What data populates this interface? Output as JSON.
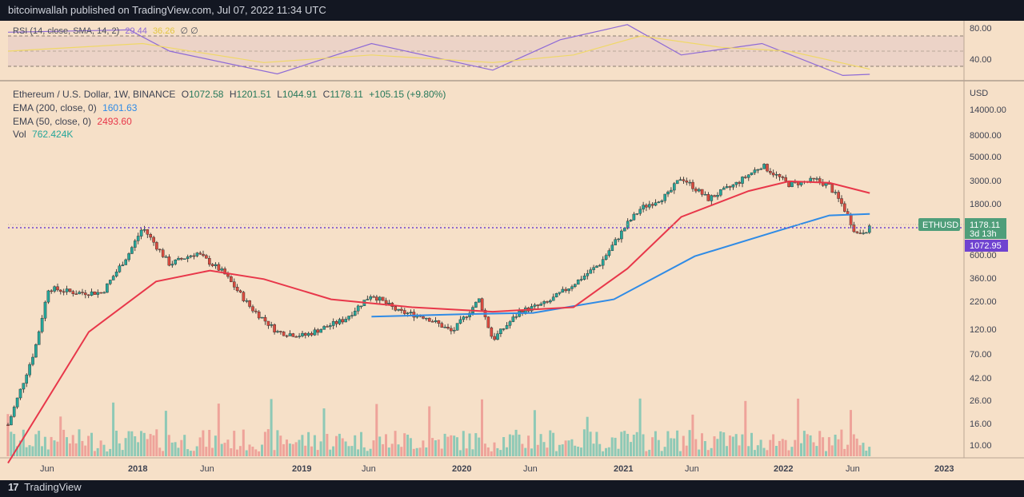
{
  "header": {
    "published": "bitcoinwallah published on TradingView.com, Jul 07, 2022 11:34 UTC"
  },
  "footer": {
    "logo": "17",
    "brand": "TradingView"
  },
  "colors": {
    "background": "#f6e0c8",
    "panel_dark": "#131722",
    "ema200": "#2f8be6",
    "ema50": "#e8374a",
    "rsi": "#8e6ad6",
    "rsi_sma": "#f0d868",
    "bull": "#26a69a",
    "bear": "#ef5350",
    "label_green": "#4f9e7a",
    "label_purple": "#6f43d0"
  },
  "rsi": {
    "label": "RSI (14, close, SMA, 14, 2)",
    "value1": "29.44",
    "value2": "36.26",
    "suffix": "∅ ∅",
    "ticks": [
      "80.00",
      "40.00"
    ]
  },
  "legend": {
    "symbol": "Ethereum / U.S. Dollar, 1W, BINANCE",
    "o_label": "O",
    "o": "1072.58",
    "h_label": "H",
    "h": "1201.51",
    "l_label": "L",
    "l": "1044.91",
    "c_label": "C",
    "c": "1178.11",
    "change": "+105.15 (+9.80%)",
    "ema200_label": "EMA (200, close, 0)",
    "ema200_value": "1601.63",
    "ema50_label": "EMA (50, close, 0)",
    "ema50_value": "2493.60",
    "vol_label": "Vol",
    "vol_value": "762.424K"
  },
  "axis": {
    "currency": "USD",
    "y_ticks": [
      "14000.00",
      "8000.00",
      "5000.00",
      "3000.00",
      "1800.00",
      "600.00",
      "360.00",
      "220.00",
      "120.00",
      "70.00",
      "42.00",
      "26.00",
      "16.00",
      "10.00"
    ],
    "x_ticks": [
      "Jun",
      "2018",
      "Jun",
      "2019",
      "Jun",
      "2020",
      "Jun",
      "2021",
      "Jun",
      "2022",
      "Jun",
      "2023"
    ]
  },
  "price_labels": {
    "symbol_tag": "ETHUSD",
    "last_price": "1178.11",
    "countdown": "3d 13h",
    "low_line": "1072.95"
  },
  "chart_data": {
    "type": "candlestick",
    "x_range": [
      "2017-03",
      "2023-02"
    ],
    "y_scale": "log",
    "ylim": [
      6,
      20000
    ],
    "series": [
      {
        "name": "ETHUSD",
        "kind": "weekly close (approx.)",
        "x": [
          "2017-03",
          "2017-05",
          "2017-06",
          "2017-08",
          "2017-10",
          "2017-12",
          "2018-01",
          "2018-03",
          "2018-05",
          "2018-07",
          "2018-09",
          "2018-11",
          "2019-01",
          "2019-04",
          "2019-06",
          "2019-08",
          "2019-10",
          "2019-12",
          "2020-02",
          "2020-03",
          "2020-05",
          "2020-07",
          "2020-09",
          "2020-11",
          "2021-01",
          "2021-02",
          "2021-04",
          "2021-05",
          "2021-07",
          "2021-09",
          "2021-11",
          "2022-01",
          "2022-03",
          "2022-04",
          "2022-05",
          "2022-06",
          "2022-07"
        ],
        "values": [
          18,
          90,
          330,
          300,
          300,
          700,
          1200,
          550,
          700,
          460,
          220,
          130,
          120,
          170,
          290,
          200,
          180,
          130,
          260,
          110,
          200,
          240,
          360,
          560,
          1300,
          1800,
          2400,
          3500,
          2200,
          3000,
          4500,
          3000,
          3300,
          2900,
          1900,
          1050,
          1178
        ]
      },
      {
        "name": "EMA (200, close, 0)",
        "x": [
          "2019-06",
          "2020-01",
          "2020-06",
          "2020-12",
          "2021-06",
          "2021-12",
          "2022-04",
          "2022-07"
        ],
        "values": [
          180,
          190,
          195,
          260,
          650,
          1100,
          1550,
          1601.63
        ]
      },
      {
        "name": "EMA (50, close, 0)",
        "x": [
          "2017-03",
          "2017-09",
          "2018-02",
          "2018-06",
          "2018-10",
          "2019-03",
          "2019-09",
          "2020-03",
          "2020-09",
          "2021-01",
          "2021-05",
          "2021-10",
          "2022-01",
          "2022-04",
          "2022-07"
        ],
        "values": [
          8,
          130,
          380,
          480,
          400,
          260,
          220,
          200,
          220,
          500,
          1500,
          2600,
          3200,
          3100,
          2493.6
        ]
      },
      {
        "name": "Vol",
        "kind": "weekly volume (relative)",
        "x": [
          "2017-12",
          "2018-01",
          "2020-03",
          "2020-07",
          "2021-01",
          "2021-05",
          "2022-05",
          "2022-06"
        ],
        "values": [
          0.4,
          0.8,
          0.55,
          1.0,
          0.9,
          0.85,
          0.7,
          0.55
        ]
      }
    ],
    "rsi": {
      "name": "RSI",
      "x": [
        "2017-03",
        "2017-12",
        "2018-03",
        "2018-11",
        "2019-06",
        "2020-03",
        "2020-08",
        "2021-01",
        "2021-05",
        "2021-11",
        "2022-05",
        "2022-07"
      ],
      "values": [
        85,
        88,
        60,
        30,
        70,
        35,
        75,
        95,
        55,
        70,
        28,
        29.44
      ]
    },
    "rsi_sma": {
      "name": "SMA",
      "x": [
        "2017-03",
        "2018-01",
        "2018-10",
        "2019-06",
        "2020-03",
        "2020-09",
        "2021-02",
        "2021-08",
        "2022-01",
        "2022-07"
      ],
      "values": [
        60,
        70,
        45,
        55,
        45,
        55,
        80,
        65,
        60,
        36.26
      ]
    }
  }
}
